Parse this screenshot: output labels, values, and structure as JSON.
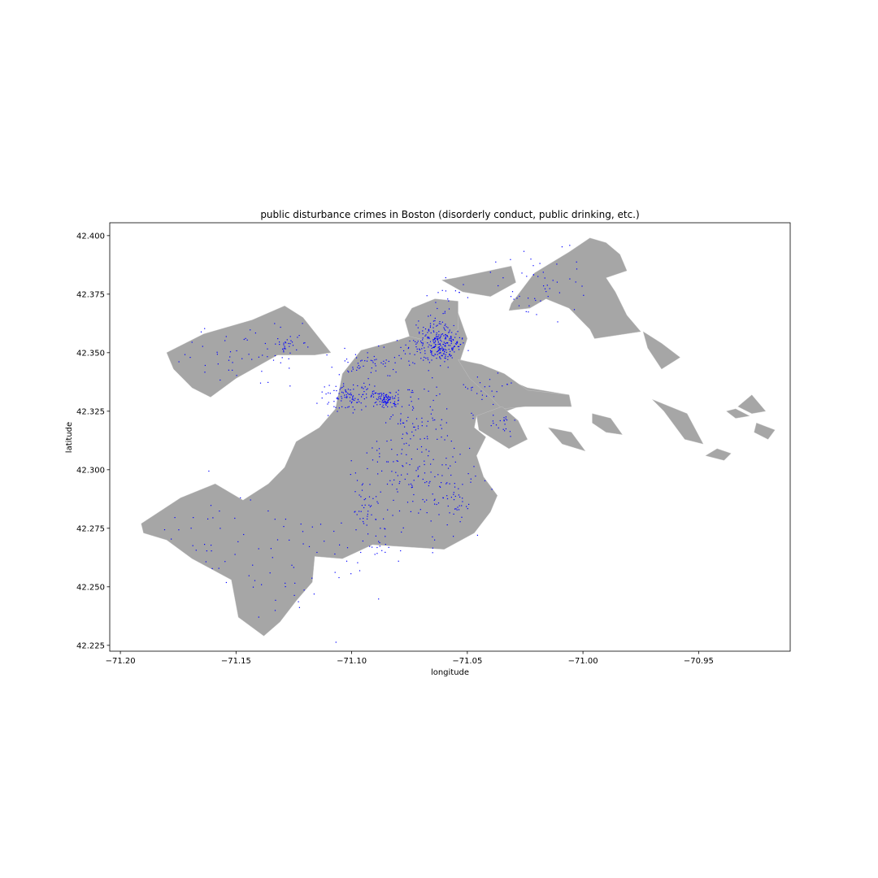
{
  "chart_data": {
    "type": "scatter",
    "title": "public disturbance crimes in Boston (disorderly conduct, public drinking, etc.)",
    "xlabel": "longitude",
    "ylabel": "latitude",
    "xlim": [
      -71.2046,
      -70.9104
    ],
    "ylim": [
      42.2225,
      42.4055
    ],
    "xticks": [
      -71.2,
      -71.15,
      -71.1,
      -71.05,
      -71.0,
      -70.95
    ],
    "xtick_labels": [
      "−71.20",
      "−71.15",
      "−71.10",
      "−71.05",
      "−71.00",
      "−70.95"
    ],
    "yticks": [
      42.225,
      42.25,
      42.275,
      42.3,
      42.325,
      42.35,
      42.375,
      42.4
    ],
    "ytick_labels": [
      "42.225",
      "42.250",
      "42.275",
      "42.300",
      "42.325",
      "42.350",
      "42.375",
      "42.400"
    ],
    "grid": false,
    "basemap_color": "#a6a6a6",
    "point_color": "#0000ff",
    "basemap_polygons": [
      [
        [
          -71.191,
          42.277
        ],
        [
          -71.174,
          42.288
        ],
        [
          -71.159,
          42.294
        ],
        [
          -71.147,
          42.287
        ],
        [
          -71.136,
          42.294
        ],
        [
          -71.129,
          42.301
        ],
        [
          -71.124,
          42.312
        ],
        [
          -71.114,
          42.318
        ],
        [
          -71.107,
          42.326
        ],
        [
          -71.104,
          42.341
        ],
        [
          -71.096,
          42.351
        ],
        [
          -71.081,
          42.355
        ],
        [
          -71.069,
          42.359
        ],
        [
          -71.061,
          42.366
        ],
        [
          -71.054,
          42.367
        ],
        [
          -71.05,
          42.356
        ],
        [
          -71.053,
          42.347
        ],
        [
          -71.045,
          42.345
        ],
        [
          -71.036,
          42.34
        ],
        [
          -71.024,
          42.335
        ],
        [
          -71.006,
          42.332
        ],
        [
          -71.005,
          42.327
        ],
        [
          -71.025,
          42.328
        ],
        [
          -71.036,
          42.324
        ],
        [
          -71.046,
          42.323
        ],
        [
          -71.047,
          42.318
        ],
        [
          -71.042,
          42.314
        ],
        [
          -71.046,
          42.306
        ],
        [
          -71.043,
          42.297
        ],
        [
          -71.037,
          42.289
        ],
        [
          -71.04,
          42.282
        ],
        [
          -71.047,
          42.273
        ],
        [
          -71.06,
          42.266
        ],
        [
          -71.076,
          42.267
        ],
        [
          -71.091,
          42.268
        ],
        [
          -71.104,
          42.262
        ],
        [
          -71.116,
          42.263
        ],
        [
          -71.117,
          42.252
        ],
        [
          -71.124,
          42.244
        ],
        [
          -71.131,
          42.235
        ],
        [
          -71.138,
          42.229
        ],
        [
          -71.149,
          42.237
        ],
        [
          -71.152,
          42.253
        ],
        [
          -71.169,
          42.262
        ],
        [
          -71.18,
          42.27
        ],
        [
          -71.19,
          42.273
        ]
      ],
      [
        [
          -71.18,
          42.35
        ],
        [
          -71.164,
          42.358
        ],
        [
          -71.143,
          42.364
        ],
        [
          -71.129,
          42.37
        ],
        [
          -71.121,
          42.365
        ],
        [
          -71.109,
          42.35
        ],
        [
          -71.116,
          42.349
        ],
        [
          -71.132,
          42.349
        ],
        [
          -71.15,
          42.339
        ],
        [
          -71.161,
          42.331
        ],
        [
          -71.169,
          42.335
        ],
        [
          -71.177,
          42.343
        ]
      ],
      [
        [
          -71.074,
          42.369
        ],
        [
          -71.064,
          42.373
        ],
        [
          -71.054,
          42.372
        ],
        [
          -71.054,
          42.36
        ],
        [
          -71.063,
          42.354
        ],
        [
          -71.075,
          42.357
        ],
        [
          -71.077,
          42.364
        ]
      ],
      [
        [
          -71.061,
          42.381
        ],
        [
          -71.055,
          42.382
        ],
        [
          -71.031,
          42.387
        ],
        [
          -71.029,
          42.38
        ],
        [
          -71.04,
          42.374
        ],
        [
          -71.052,
          42.376
        ]
      ],
      [
        [
          -71.031,
          42.371
        ],
        [
          -71.021,
          42.384
        ],
        [
          -71.006,
          42.393
        ],
        [
          -70.997,
          42.399
        ],
        [
          -70.99,
          42.397
        ],
        [
          -70.984,
          42.392
        ],
        [
          -70.981,
          42.385
        ],
        [
          -70.99,
          42.382
        ],
        [
          -70.986,
          42.376
        ],
        [
          -70.981,
          42.366
        ],
        [
          -70.975,
          42.359
        ],
        [
          -70.995,
          42.356
        ],
        [
          -70.997,
          42.36
        ],
        [
          -71.006,
          42.369
        ],
        [
          -71.016,
          42.373
        ],
        [
          -71.023,
          42.369
        ],
        [
          -71.032,
          42.368
        ]
      ],
      [
        [
          -71.054,
          42.347
        ],
        [
          -71.044,
          42.345
        ],
        [
          -71.034,
          42.341
        ],
        [
          -71.024,
          42.334
        ],
        [
          -71.006,
          42.332
        ],
        [
          -71.005,
          42.327
        ],
        [
          -71.025,
          42.327
        ],
        [
          -71.035,
          42.326
        ],
        [
          -71.04,
          42.331
        ],
        [
          -71.049,
          42.339
        ]
      ],
      [
        [
          -71.035,
          42.327
        ],
        [
          -71.028,
          42.321
        ],
        [
          -71.024,
          42.313
        ],
        [
          -71.032,
          42.309
        ],
        [
          -71.045,
          42.317
        ],
        [
          -71.046,
          42.323
        ]
      ],
      [
        [
          -70.974,
          42.359
        ],
        [
          -70.966,
          42.354
        ],
        [
          -70.958,
          42.348
        ],
        [
          -70.966,
          42.343
        ],
        [
          -70.972,
          42.352
        ]
      ],
      [
        [
          -70.996,
          42.324
        ],
        [
          -70.988,
          42.322
        ],
        [
          -70.983,
          42.315
        ],
        [
          -70.99,
          42.316
        ],
        [
          -70.996,
          42.32
        ]
      ],
      [
        [
          -70.97,
          42.33
        ],
        [
          -70.955,
          42.324
        ],
        [
          -70.948,
          42.311
        ],
        [
          -70.956,
          42.313
        ],
        [
          -70.965,
          42.325
        ]
      ],
      [
        [
          -71.015,
          42.318
        ],
        [
          -71.005,
          42.316
        ],
        [
          -70.999,
          42.308
        ],
        [
          -71.009,
          42.311
        ]
      ],
      [
        [
          -70.942,
          42.309
        ],
        [
          -70.936,
          42.307
        ],
        [
          -70.939,
          42.304
        ],
        [
          -70.947,
          42.306
        ]
      ],
      [
        [
          -70.927,
          42.332
        ],
        [
          -70.921,
          42.325
        ],
        [
          -70.927,
          42.324
        ],
        [
          -70.933,
          42.327
        ]
      ],
      [
        [
          -70.925,
          42.32
        ],
        [
          -70.917,
          42.317
        ],
        [
          -70.92,
          42.313
        ],
        [
          -70.926,
          42.316
        ]
      ],
      [
        [
          -70.934,
          42.326
        ],
        [
          -70.928,
          42.323
        ],
        [
          -70.934,
          42.322
        ],
        [
          -70.938,
          42.325
        ]
      ]
    ],
    "point_clusters": [
      {
        "lon": -71.061,
        "lat": 42.353,
        "spread_lon": 0.004,
        "spread_lat": 0.003,
        "count": 160
      },
      {
        "lon": -71.063,
        "lat": 42.358,
        "spread_lon": 0.004,
        "spread_lat": 0.005,
        "count": 90
      },
      {
        "lon": -71.085,
        "lat": 42.33,
        "spread_lon": 0.003,
        "spread_lat": 0.0015,
        "count": 90
      },
      {
        "lon": -71.101,
        "lat": 42.331,
        "spread_lon": 0.006,
        "spread_lat": 0.003,
        "count": 110
      },
      {
        "lon": -71.094,
        "lat": 42.345,
        "spread_lon": 0.006,
        "spread_lat": 0.003,
        "count": 45
      },
      {
        "lon": -71.074,
        "lat": 42.35,
        "spread_lon": 0.006,
        "spread_lat": 0.003,
        "count": 40
      },
      {
        "lon": -71.07,
        "lat": 42.322,
        "spread_lon": 0.009,
        "spread_lat": 0.01,
        "count": 80
      },
      {
        "lon": -71.078,
        "lat": 42.297,
        "spread_lon": 0.01,
        "spread_lat": 0.012,
        "count": 120
      },
      {
        "lon": -71.094,
        "lat": 42.283,
        "spread_lon": 0.002,
        "spread_lat": 0.005,
        "count": 30
      },
      {
        "lon": -71.058,
        "lat": 42.292,
        "spread_lon": 0.008,
        "spread_lat": 0.01,
        "count": 70
      },
      {
        "lon": -71.043,
        "lat": 42.335,
        "spread_lon": 0.006,
        "spread_lat": 0.003,
        "count": 25
      },
      {
        "lon": -71.034,
        "lat": 42.32,
        "spread_lon": 0.003,
        "spread_lat": 0.002,
        "count": 20
      },
      {
        "lon": -71.145,
        "lat": 42.35,
        "spread_lon": 0.015,
        "spread_lat": 0.006,
        "count": 55
      },
      {
        "lon": -71.128,
        "lat": 42.353,
        "spread_lon": 0.004,
        "spread_lat": 0.002,
        "count": 25
      },
      {
        "lon": -71.02,
        "lat": 42.379,
        "spread_lon": 0.01,
        "spread_lat": 0.008,
        "count": 50
      },
      {
        "lon": -71.058,
        "lat": 42.376,
        "spread_lon": 0.004,
        "spread_lat": 0.003,
        "count": 12
      },
      {
        "lon": -71.118,
        "lat": 42.262,
        "spread_lon": 0.012,
        "spread_lat": 0.012,
        "count": 45
      },
      {
        "lon": -71.16,
        "lat": 42.27,
        "spread_lon": 0.012,
        "spread_lat": 0.012,
        "count": 35
      },
      {
        "lon": -71.088,
        "lat": 42.268,
        "spread_lon": 0.003,
        "spread_lat": 0.002,
        "count": 15
      }
    ]
  }
}
